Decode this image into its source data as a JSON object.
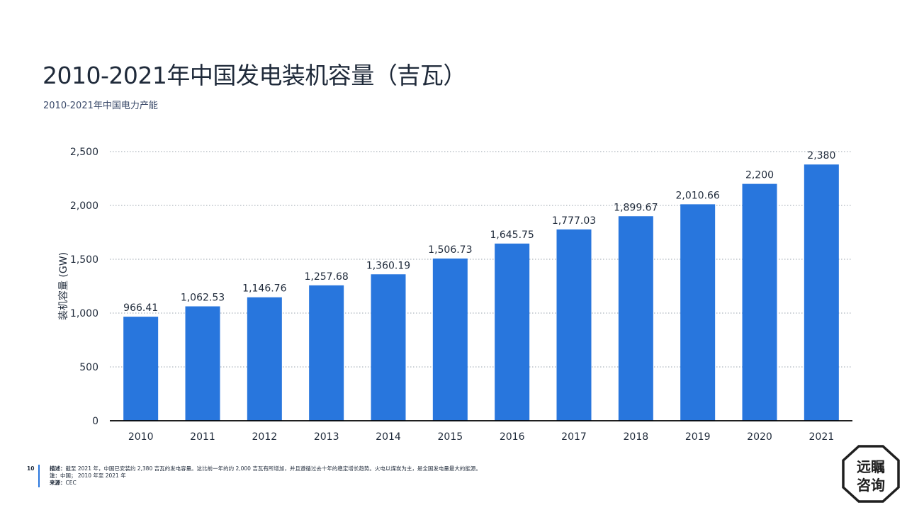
{
  "title": "2010-2021年中国发电装机容量（吉瓦）",
  "subtitle": "2010-2021年中国电力产能",
  "chart_data": {
    "type": "bar",
    "categories": [
      "2010",
      "2011",
      "2012",
      "2013",
      "2014",
      "2015",
      "2016",
      "2017",
      "2018",
      "2019",
      "2020",
      "2021"
    ],
    "values": [
      966.41,
      1062.53,
      1146.76,
      1257.68,
      1360.19,
      1506.73,
      1645.75,
      1777.03,
      1899.67,
      2010.66,
      2200,
      2380
    ],
    "value_labels": [
      "966.41",
      "1,062.53",
      "1,146.76",
      "1,257.68",
      "1,360.19",
      "1,506.73",
      "1,645.75",
      "1,777.03",
      "1,899.67",
      "2,010.66",
      "2,200",
      "2,380"
    ],
    "ylabel": "装机容量 (GW)",
    "xlabel": "",
    "ylim": [
      0,
      2500
    ],
    "yticks": [
      0,
      500,
      1000,
      1500,
      2000,
      2500
    ],
    "ytick_labels": [
      "0",
      "500",
      "1,000",
      "1,500",
      "2,000",
      "2,500"
    ],
    "grid": true,
    "bar_color": "#2876dd"
  },
  "footer": {
    "page_number": "10",
    "description_label": "描述：",
    "description": "截至 2021 年，中国已安装约 2,380 吉瓦的发电容量。这比前一年的约 2,000 吉瓦有所增加，并且遵循过去十年的稳定增长趋势。火电以煤炭为主，是全国发电量最大的能源。",
    "note_label": "注：",
    "note": "中国； 2010 年至 2021 年",
    "source_label": "来源：",
    "source": "CEC"
  },
  "logo": {
    "line1": "远瞩",
    "line2": "咨询"
  }
}
